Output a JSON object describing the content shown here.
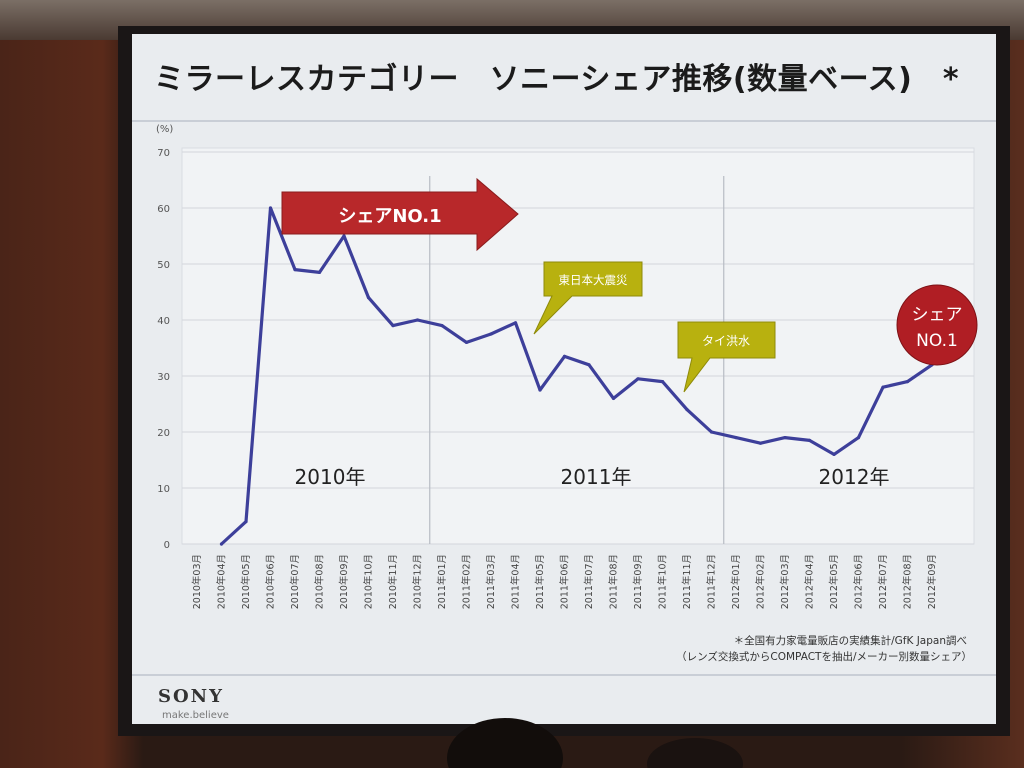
{
  "slide": {
    "title": "ミラーレスカテゴリー　ソニーシェア推移(数量ベース)　*",
    "logo": "SONY",
    "tagline": "make.believe",
    "footnote_1": "＊全国有力家電量販店の実績集計/GfK Japan調べ",
    "footnote_2": "（レンズ交換式からCOMPACTを抽出/メーカー別数量シェア）"
  },
  "chart_data": {
    "type": "line",
    "ylabel": "(%)",
    "ylim": [
      0,
      70
    ],
    "yticks": [
      0,
      10,
      20,
      30,
      40,
      50,
      60,
      70
    ],
    "grid": true,
    "categories": [
      "2010年03月",
      "2010年04月",
      "2010年05月",
      "2010年06月",
      "2010年07月",
      "2010年08月",
      "2010年09月",
      "2010年10月",
      "2010年11月",
      "2010年12月",
      "2011年01月",
      "2011年02月",
      "2011年03月",
      "2011年04月",
      "2011年05月",
      "2011年06月",
      "2011年07月",
      "2011年08月",
      "2011年09月",
      "2011年10月",
      "2011年11月",
      "2011年12月",
      "2012年01月",
      "2012年02月",
      "2012年03月",
      "2012年04月",
      "2012年05月",
      "2012年06月",
      "2012年07月",
      "2012年08月",
      "2012年09月"
    ],
    "series": [
      {
        "values": [
          null,
          0,
          4,
          60,
          49,
          48.5,
          55,
          44,
          39,
          40,
          39,
          36,
          37.5,
          39.5,
          27.5,
          33.5,
          32,
          26,
          29.5,
          29,
          24,
          20,
          19,
          18,
          19,
          18.5,
          16,
          19,
          28,
          29,
          32
        ],
        "color": "#3d3f9a"
      }
    ],
    "year_labels": [
      "2010年",
      "2011年",
      "2012年"
    ],
    "annotations": {
      "arrow": "シェアNO.1",
      "earthquake": "東日本大震災",
      "flood": "タイ洪水",
      "badge_line1": "シェア",
      "badge_line2": "NO.1"
    },
    "colors": {
      "line": "#3d3f9a",
      "arrow": "#b8282a",
      "callout": "#b8b10f",
      "badge": "#b01e24",
      "grid": "#d3d6dc"
    }
  }
}
